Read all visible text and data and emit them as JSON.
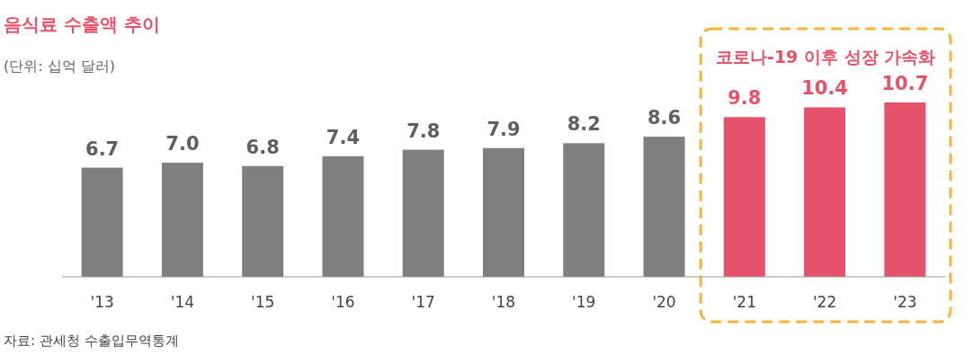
{
  "chart_data": {
    "type": "bar",
    "title": "음식료 수출액 추이",
    "subtitle": "(단위: 십억 달러)",
    "categories": [
      "'13",
      "'14",
      "'15",
      "'16",
      "'17",
      "'18",
      "'19",
      "'20",
      "'21",
      "'22",
      "'23"
    ],
    "values": [
      6.7,
      7.0,
      6.8,
      7.4,
      7.8,
      7.9,
      8.2,
      8.6,
      9.8,
      10.4,
      10.7
    ],
    "value_labels": [
      "6.7",
      "7.0",
      "6.8",
      "7.4",
      "7.8",
      "7.9",
      "8.2",
      "8.6",
      "9.8",
      "10.4",
      "10.7"
    ],
    "colors": [
      "#7f7f7f",
      "#7f7f7f",
      "#7f7f7f",
      "#7f7f7f",
      "#7f7f7f",
      "#7f7f7f",
      "#7f7f7f",
      "#7f7f7f",
      "#e5526a",
      "#e5526a",
      "#e5526a"
    ],
    "annotations": [
      "코로나-19 이후 성장 가속화",
      "자료: 관세청 수출입무역통계"
    ]
  }
}
